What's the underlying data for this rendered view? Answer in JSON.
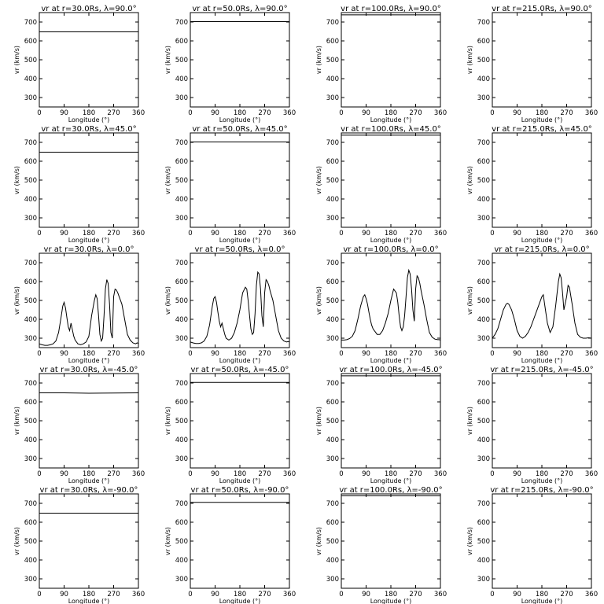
{
  "chart_data": {
    "type": "line",
    "layout": "5x4 grid of panels",
    "xlabel": "Longitude (°)",
    "ylabel": "vr (km/s)",
    "xlim": [
      0,
      360
    ],
    "ylim": [
      250,
      750
    ],
    "xticks": [
      0,
      90,
      180,
      270,
      360
    ],
    "yticks": [
      300,
      400,
      500,
      600,
      700
    ],
    "panels": [
      {
        "title": "vr at r=30.0Rs, λ=90.0°",
        "x": [
          0,
          360
        ],
        "y": [
          648,
          648
        ]
      },
      {
        "title": "vr at r=50.0Rs, λ=90.0°",
        "x": [
          0,
          360
        ],
        "y": [
          702,
          702
        ]
      },
      {
        "title": "vr at r=100.0Rs, λ=90.0°",
        "x": [
          0,
          360
        ],
        "y": [
          738,
          738
        ]
      },
      {
        "title": "vr at r=215.0Rs, λ=90.0°",
        "x": [
          0,
          360
        ],
        "y": [
          755,
          755
        ]
      },
      {
        "title": "vr at r=30.0Rs, λ=45.0°",
        "x": [
          0,
          360
        ],
        "y": [
          648,
          648
        ]
      },
      {
        "title": "vr at r=50.0Rs, λ=45.0°",
        "x": [
          0,
          360
        ],
        "y": [
          702,
          702
        ]
      },
      {
        "title": "vr at r=100.0Rs, λ=45.0°",
        "x": [
          0,
          360
        ],
        "y": [
          738,
          738
        ]
      },
      {
        "title": "vr at r=215.0Rs, λ=45.0°",
        "x": [
          0,
          360
        ],
        "y": [
          755,
          755
        ]
      },
      {
        "title": "vr at r=30.0Rs, λ=0.0°",
        "x": [
          0,
          10,
          20,
          30,
          40,
          50,
          60,
          70,
          80,
          85,
          90,
          95,
          100,
          105,
          110,
          115,
          120,
          125,
          130,
          140,
          150,
          160,
          170,
          180,
          190,
          200,
          205,
          210,
          215,
          220,
          225,
          230,
          235,
          240,
          245,
          250,
          255,
          260,
          265,
          270,
          275,
          280,
          285,
          290,
          300,
          310,
          320,
          330,
          340,
          350,
          355,
          360
        ],
        "y": [
          270,
          265,
          262,
          262,
          265,
          270,
          285,
          330,
          420,
          470,
          490,
          460,
          410,
          360,
          340,
          380,
          345,
          310,
          290,
          270,
          265,
          270,
          280,
          310,
          420,
          500,
          530,
          510,
          420,
          320,
          285,
          300,
          420,
          560,
          610,
          590,
          480,
          330,
          300,
          520,
          560,
          555,
          540,
          520,
          480,
          400,
          320,
          290,
          275,
          270,
          275,
          272
        ]
      },
      {
        "title": "vr at r=50.0Rs, λ=0.0°",
        "x": [
          0,
          10,
          20,
          30,
          40,
          50,
          60,
          70,
          80,
          85,
          90,
          95,
          100,
          105,
          110,
          115,
          120,
          125,
          130,
          140,
          150,
          160,
          170,
          180,
          190,
          200,
          205,
          210,
          215,
          220,
          225,
          230,
          235,
          240,
          245,
          250,
          255,
          260,
          265,
          270,
          275,
          280,
          285,
          290,
          300,
          310,
          320,
          330,
          340,
          350,
          355,
          360
        ],
        "y": [
          280,
          275,
          272,
          272,
          275,
          285,
          310,
          370,
          470,
          510,
          520,
          490,
          440,
          390,
          360,
          380,
          350,
          320,
          300,
          290,
          300,
          330,
          380,
          450,
          540,
          570,
          560,
          500,
          420,
          350,
          320,
          330,
          430,
          580,
          650,
          640,
          560,
          420,
          360,
          540,
          610,
          600,
          580,
          550,
          500,
          420,
          340,
          300,
          285,
          280,
          282,
          280
        ]
      },
      {
        "title": "vr at r=100.0Rs, λ=0.0°",
        "x": [
          0,
          10,
          20,
          30,
          40,
          50,
          60,
          70,
          80,
          85,
          90,
          95,
          100,
          105,
          110,
          115,
          120,
          125,
          130,
          140,
          150,
          160,
          170,
          180,
          190,
          200,
          205,
          210,
          215,
          220,
          225,
          230,
          235,
          240,
          245,
          250,
          255,
          260,
          265,
          270,
          275,
          280,
          285,
          290,
          300,
          310,
          320,
          330,
          340,
          350,
          355,
          360
        ],
        "y": [
          290,
          290,
          292,
          298,
          310,
          340,
          400,
          470,
          520,
          530,
          510,
          480,
          440,
          400,
          370,
          350,
          340,
          330,
          320,
          320,
          340,
          380,
          430,
          500,
          560,
          540,
          490,
          420,
          360,
          340,
          360,
          420,
          520,
          620,
          660,
          640,
          560,
          450,
          390,
          560,
          630,
          620,
          590,
          550,
          480,
          400,
          330,
          305,
          295,
          292,
          292,
          290
        ]
      },
      {
        "title": "vr at r=215.0Rs, λ=0.0°",
        "x": [
          0,
          10,
          20,
          30,
          40,
          50,
          55,
          60,
          70,
          80,
          90,
          100,
          110,
          120,
          130,
          140,
          150,
          160,
          170,
          180,
          185,
          190,
          200,
          210,
          220,
          230,
          240,
          245,
          250,
          255,
          260,
          270,
          275,
          280,
          290,
          300,
          310,
          320,
          330,
          340,
          350,
          360
        ],
        "y": [
          300,
          320,
          350,
          400,
          450,
          480,
          485,
          480,
          450,
          400,
          340,
          310,
          300,
          310,
          330,
          360,
          400,
          440,
          480,
          520,
          530,
          480,
          380,
          330,
          360,
          470,
          600,
          640,
          620,
          540,
          450,
          520,
          580,
          570,
          480,
          380,
          320,
          305,
          300,
          300,
          302,
          300
        ]
      },
      {
        "title": "vr at r=30.0Rs, λ=-45.0°",
        "x": [
          0,
          90,
          180,
          270,
          360
        ],
        "y": [
          648,
          648,
          646,
          647,
          648
        ]
      },
      {
        "title": "vr at r=50.0Rs, λ=-45.0°",
        "x": [
          0,
          360
        ],
        "y": [
          703,
          703
        ]
      },
      {
        "title": "vr at r=100.0Rs, λ=-45.0°",
        "x": [
          0,
          360
        ],
        "y": [
          738,
          738
        ]
      },
      {
        "title": "vr at r=215.0Rs, λ=-45.0°",
        "x": [
          0,
          180,
          360
        ],
        "y": [
          757,
          755,
          757
        ]
      },
      {
        "title": "vr at r=30.0Rs, λ=-90.0°",
        "x": [
          0,
          360
        ],
        "y": [
          648,
          648
        ]
      },
      {
        "title": "vr at r=50.0Rs, λ=-90.0°",
        "x": [
          0,
          360
        ],
        "y": [
          705,
          705
        ]
      },
      {
        "title": "vr at r=100.0Rs, λ=-90.0°",
        "x": [
          0,
          360
        ],
        "y": [
          740,
          740
        ]
      },
      {
        "title": "vr at r=215.0Rs, λ=-90.0°",
        "x": [
          0,
          360
        ],
        "y": [
          756,
          756
        ]
      }
    ]
  }
}
